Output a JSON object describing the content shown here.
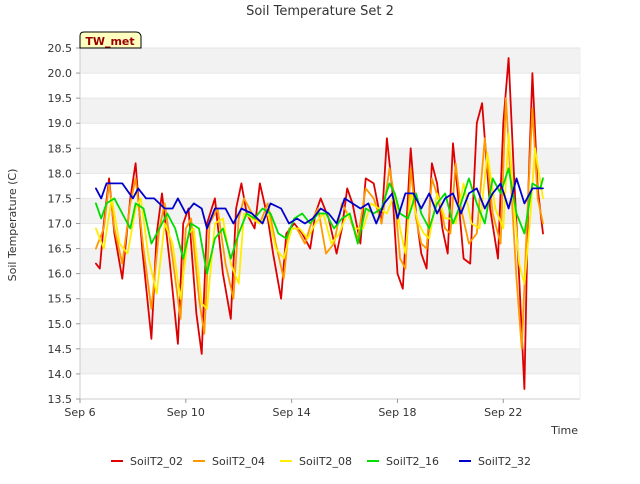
{
  "chart_data": {
    "type": "line",
    "title": "Soil Temperature Set 2",
    "badge": "TW_met",
    "xlabel": "Time",
    "ylabel": "Soil Temperature (C)",
    "x_unit": "day of September",
    "xlim": [
      6,
      24.9
    ],
    "ylim": [
      13.5,
      20.5
    ],
    "xticks": [
      6,
      10,
      14,
      18,
      22
    ],
    "xtick_labels": [
      "Sep 6",
      "Sep 10",
      "Sep 14",
      "Sep 18",
      "Sep 22"
    ],
    "yticks": [
      13.5,
      14.0,
      14.5,
      15.0,
      15.5,
      16.0,
      16.5,
      17.0,
      17.5,
      18.0,
      18.5,
      19.0,
      19.5,
      20.0,
      20.5
    ],
    "ytick_labels": [
      "13.5",
      "14.0",
      "14.5",
      "15.0",
      "15.5",
      "16.0",
      "16.5",
      "17.0",
      "17.5",
      "18.0",
      "18.5",
      "19.0",
      "19.5",
      "20.0",
      "20.5"
    ],
    "grid": "alternating horizontal bands",
    "legend": "bottom",
    "colors": {
      "SoilT2_02": "#dd0000",
      "SoilT2_04": "#ff9900",
      "SoilT2_08": "#ffee00",
      "SoilT2_16": "#00dd00",
      "SoilT2_32": "#0000cc",
      "band": "#f2f2f2",
      "badge_fill": "#ffffc0",
      "badge_text": "#990000"
    },
    "series": [
      {
        "name": "SoilT2_02",
        "x": [
          6.6,
          6.75,
          6.9,
          7.1,
          7.3,
          7.6,
          7.9,
          8.1,
          8.35,
          8.7,
          8.9,
          9.1,
          9.4,
          9.7,
          9.9,
          10.1,
          10.4,
          10.6,
          10.8,
          11.1,
          11.4,
          11.7,
          11.9,
          12.1,
          12.3,
          12.6,
          12.8,
          13.1,
          13.3,
          13.6,
          13.8,
          14.1,
          14.4,
          14.7,
          14.9,
          15.1,
          15.4,
          15.7,
          15.9,
          16.1,
          16.3,
          16.6,
          16.8,
          17.1,
          17.4,
          17.6,
          17.8,
          18.0,
          18.2,
          18.5,
          18.7,
          18.9,
          19.1,
          19.3,
          19.5,
          19.7,
          19.9,
          20.1,
          20.3,
          20.5,
          20.75,
          21.0,
          21.2,
          21.5,
          21.8,
          22.0,
          22.2,
          22.4,
          22.6,
          22.8,
          22.95,
          23.1,
          23.3,
          23.5
        ],
        "y": [
          16.2,
          16.1,
          17.0,
          17.9,
          16.8,
          15.9,
          17.5,
          18.2,
          16.5,
          14.7,
          16.8,
          17.6,
          16.2,
          14.6,
          17.0,
          17.3,
          15.2,
          14.4,
          17.0,
          17.5,
          16.0,
          15.1,
          17.3,
          17.8,
          17.2,
          16.9,
          17.8,
          17.1,
          16.4,
          15.5,
          16.8,
          17.0,
          16.8,
          16.5,
          17.2,
          17.5,
          17.1,
          16.4,
          16.9,
          17.7,
          17.4,
          16.6,
          17.9,
          17.8,
          17.0,
          18.7,
          17.7,
          16.0,
          15.7,
          18.5,
          17.2,
          16.4,
          16.1,
          18.2,
          17.8,
          16.9,
          16.4,
          18.6,
          17.5,
          16.3,
          16.2,
          19.0,
          19.4,
          17.3,
          16.3,
          19.0,
          20.3,
          18.0,
          15.9,
          13.7,
          17.7,
          20.0,
          17.7,
          16.8
        ]
      },
      {
        "name": "SoilT2_04",
        "x": [
          6.6,
          6.9,
          7.1,
          7.3,
          7.6,
          7.9,
          8.1,
          8.4,
          8.7,
          9.0,
          9.2,
          9.5,
          9.8,
          10.0,
          10.2,
          10.5,
          10.7,
          10.9,
          11.2,
          11.5,
          11.8,
          12.0,
          12.2,
          12.5,
          12.8,
          13.1,
          13.4,
          13.7,
          13.9,
          14.2,
          14.5,
          14.8,
          15.0,
          15.3,
          15.6,
          15.9,
          16.2,
          16.5,
          16.8,
          17.1,
          17.4,
          17.7,
          17.9,
          18.1,
          18.3,
          18.5,
          18.7,
          18.9,
          19.1,
          19.3,
          19.6,
          19.8,
          20.0,
          20.2,
          20.4,
          20.7,
          21.0,
          21.3,
          21.6,
          21.9,
          22.1,
          22.3,
          22.5,
          22.7,
          22.9,
          23.1,
          23.3,
          23.5
        ],
        "y": [
          16.5,
          16.9,
          17.8,
          16.9,
          16.2,
          17.4,
          17.9,
          16.5,
          15.3,
          16.9,
          17.4,
          16.3,
          15.1,
          16.9,
          17.1,
          15.5,
          14.8,
          17.0,
          17.3,
          16.2,
          15.5,
          17.1,
          17.5,
          17.2,
          17.0,
          17.4,
          16.6,
          15.9,
          16.9,
          16.9,
          16.6,
          17.1,
          17.3,
          16.4,
          16.6,
          17.4,
          17.1,
          16.7,
          17.7,
          17.5,
          17.0,
          18.1,
          17.5,
          16.3,
          16.1,
          18.1,
          17.1,
          16.6,
          16.5,
          17.9,
          17.4,
          16.9,
          16.8,
          18.2,
          17.3,
          16.6,
          16.8,
          18.7,
          17.2,
          16.6,
          19.5,
          17.7,
          15.9,
          14.5,
          17.1,
          19.3,
          17.5,
          17.0
        ]
      },
      {
        "name": "SoilT2_08",
        "x": [
          6.6,
          6.9,
          7.2,
          7.5,
          7.8,
          8.1,
          8.3,
          8.6,
          8.9,
          9.2,
          9.5,
          9.8,
          10.1,
          10.3,
          10.6,
          10.8,
          11.1,
          11.4,
          11.7,
          12.0,
          12.2,
          12.5,
          12.8,
          13.1,
          13.4,
          13.7,
          14.0,
          14.3,
          14.6,
          14.9,
          15.2,
          15.5,
          15.8,
          16.1,
          16.4,
          16.7,
          17.0,
          17.3,
          17.6,
          17.9,
          18.1,
          18.3,
          18.5,
          18.8,
          19.0,
          19.2,
          19.5,
          19.8,
          20.0,
          20.2,
          20.5,
          20.8,
          21.1,
          21.4,
          21.7,
          22.0,
          22.2,
          22.4,
          22.6,
          22.8,
          23.0,
          23.2,
          23.5
        ],
        "y": [
          16.9,
          16.5,
          17.5,
          16.6,
          16.4,
          17.3,
          17.5,
          16.3,
          15.6,
          17.0,
          16.6,
          15.5,
          16.8,
          16.9,
          15.4,
          15.3,
          17.0,
          17.1,
          16.2,
          15.8,
          17.2,
          17.1,
          17.0,
          17.2,
          16.5,
          16.3,
          16.9,
          16.9,
          16.7,
          17.0,
          17.2,
          16.6,
          16.8,
          17.2,
          16.9,
          16.9,
          17.4,
          17.3,
          17.2,
          17.6,
          16.9,
          16.4,
          17.6,
          17.0,
          16.8,
          16.7,
          17.6,
          17.1,
          17.1,
          17.0,
          17.8,
          17.0,
          16.9,
          18.4,
          17.3,
          16.9,
          18.8,
          17.4,
          16.2,
          15.8,
          17.0,
          18.5,
          17.5
        ]
      },
      {
        "name": "SoilT2_16",
        "x": [
          6.6,
          6.8,
          7.0,
          7.3,
          7.6,
          7.9,
          8.1,
          8.4,
          8.7,
          9.0,
          9.3,
          9.6,
          9.9,
          10.2,
          10.5,
          10.8,
          11.1,
          11.4,
          11.7,
          12.0,
          12.3,
          12.6,
          12.9,
          13.2,
          13.5,
          13.8,
          14.1,
          14.4,
          14.7,
          15.0,
          15.3,
          15.6,
          15.9,
          16.2,
          16.5,
          16.8,
          17.1,
          17.4,
          17.7,
          17.9,
          18.1,
          18.4,
          18.7,
          18.9,
          19.2,
          19.5,
          19.8,
          20.1,
          20.4,
          20.7,
          21.0,
          21.3,
          21.6,
          21.9,
          22.2,
          22.5,
          22.8,
          23.1,
          23.4,
          23.5
        ],
        "y": [
          17.4,
          17.1,
          17.4,
          17.5,
          17.2,
          16.9,
          17.4,
          17.3,
          16.6,
          16.9,
          17.2,
          16.9,
          16.3,
          17.0,
          16.9,
          16.0,
          16.7,
          16.9,
          16.3,
          16.8,
          17.2,
          17.1,
          17.3,
          17.2,
          16.8,
          16.7,
          17.1,
          17.2,
          17.0,
          17.2,
          17.2,
          16.9,
          17.1,
          17.2,
          16.6,
          17.3,
          17.2,
          17.3,
          17.8,
          17.6,
          17.2,
          17.1,
          17.6,
          17.2,
          16.9,
          17.4,
          17.6,
          17.0,
          17.4,
          17.9,
          17.4,
          17.0,
          17.9,
          17.6,
          18.1,
          17.2,
          16.8,
          17.8,
          17.7,
          17.9
        ]
      },
      {
        "name": "SoilT2_32",
        "x": [
          6.6,
          6.8,
          7.0,
          7.2,
          7.6,
          8.0,
          8.2,
          8.5,
          8.8,
          9.2,
          9.5,
          9.7,
          10.0,
          10.3,
          10.6,
          10.8,
          11.1,
          11.5,
          11.8,
          12.1,
          12.5,
          12.9,
          13.2,
          13.6,
          13.9,
          14.2,
          14.5,
          14.8,
          15.1,
          15.4,
          15.7,
          16.0,
          16.3,
          16.6,
          16.9,
          17.2,
          17.5,
          17.8,
          18.0,
          18.3,
          18.6,
          18.9,
          19.2,
          19.5,
          19.8,
          20.1,
          20.4,
          20.7,
          21.0,
          21.3,
          21.6,
          21.9,
          22.2,
          22.5,
          22.8,
          23.1,
          23.5
        ],
        "y": [
          17.7,
          17.5,
          17.8,
          17.8,
          17.8,
          17.5,
          17.7,
          17.5,
          17.5,
          17.3,
          17.3,
          17.5,
          17.2,
          17.4,
          17.3,
          16.9,
          17.3,
          17.3,
          17.0,
          17.3,
          17.2,
          17.0,
          17.4,
          17.3,
          17.0,
          17.1,
          17.0,
          17.1,
          17.3,
          17.2,
          17.0,
          17.5,
          17.4,
          17.3,
          17.4,
          17.0,
          17.4,
          17.6,
          17.1,
          17.6,
          17.6,
          17.3,
          17.6,
          17.2,
          17.5,
          17.6,
          17.2,
          17.6,
          17.7,
          17.3,
          17.6,
          17.8,
          17.3,
          17.9,
          17.4,
          17.7,
          17.7
        ]
      }
    ]
  }
}
